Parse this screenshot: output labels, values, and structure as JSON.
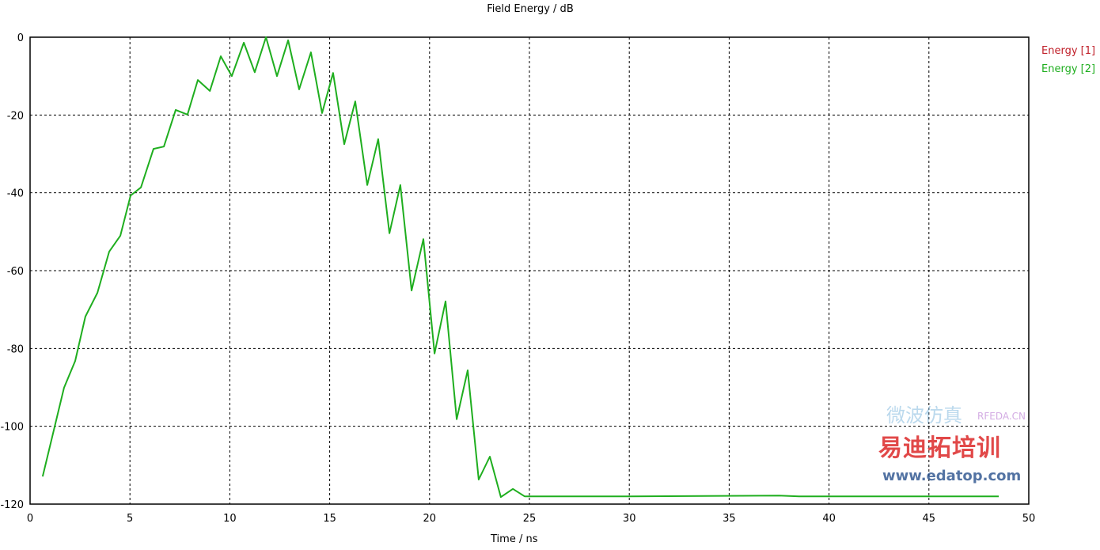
{
  "chart_data": {
    "type": "line",
    "title": "Field Energy / dB",
    "xlabel": "Time / ns",
    "ylabel": "",
    "xlim": [
      0,
      50
    ],
    "ylim": [
      -120,
      0
    ],
    "xticks": [
      0,
      5,
      10,
      15,
      20,
      25,
      30,
      35,
      40,
      45,
      50
    ],
    "yticks": [
      0,
      -20,
      -40,
      -60,
      -80,
      -100,
      -120
    ],
    "grid": true,
    "legend_position": "right",
    "series": [
      {
        "name": "Energy [1]",
        "color": "#c0202a",
        "x": [],
        "y": []
      },
      {
        "name": "Energy [2]",
        "color": "#1fae1f",
        "x": [
          0.63,
          1.7,
          2.26,
          2.77,
          3.37,
          3.96,
          4.52,
          5.03,
          5.55,
          6.18,
          6.7,
          7.29,
          7.88,
          8.4,
          9.0,
          9.55,
          10.1,
          10.7,
          11.25,
          11.81,
          12.36,
          12.92,
          13.47,
          14.06,
          14.62,
          15.17,
          15.73,
          16.28,
          16.88,
          17.43,
          17.99,
          18.54,
          19.1,
          19.69,
          20.25,
          20.8,
          21.36,
          21.91,
          22.46,
          23.02,
          23.57,
          24.17,
          24.76,
          30,
          37.5,
          38.5,
          45,
          48.5
        ],
        "y": [
          -112.9,
          -90.1,
          -83.2,
          -71.8,
          -65.7,
          -55.1,
          -51.0,
          -40.7,
          -38.6,
          -28.7,
          -28.1,
          -18.7,
          -19.9,
          -11.0,
          -13.8,
          -4.9,
          -10.0,
          -1.4,
          -9.0,
          0,
          -10.0,
          -0.8,
          -13.4,
          -3.9,
          -19.5,
          -9.2,
          -27.5,
          -16.5,
          -38.0,
          -26.2,
          -50.4,
          -38.0,
          -65.1,
          -51.9,
          -81.3,
          -67.9,
          -98.2,
          -85.6,
          -113.7,
          -107.8,
          -118.2,
          -116.1,
          -118,
          -118,
          -117.8,
          -118,
          -118,
          -118
        ]
      }
    ]
  },
  "watermark": {
    "brand": "易迪拓培训",
    "url": "www.edatop.com",
    "site": "RFEDA.CN",
    "subtitle": "微波仿真"
  }
}
